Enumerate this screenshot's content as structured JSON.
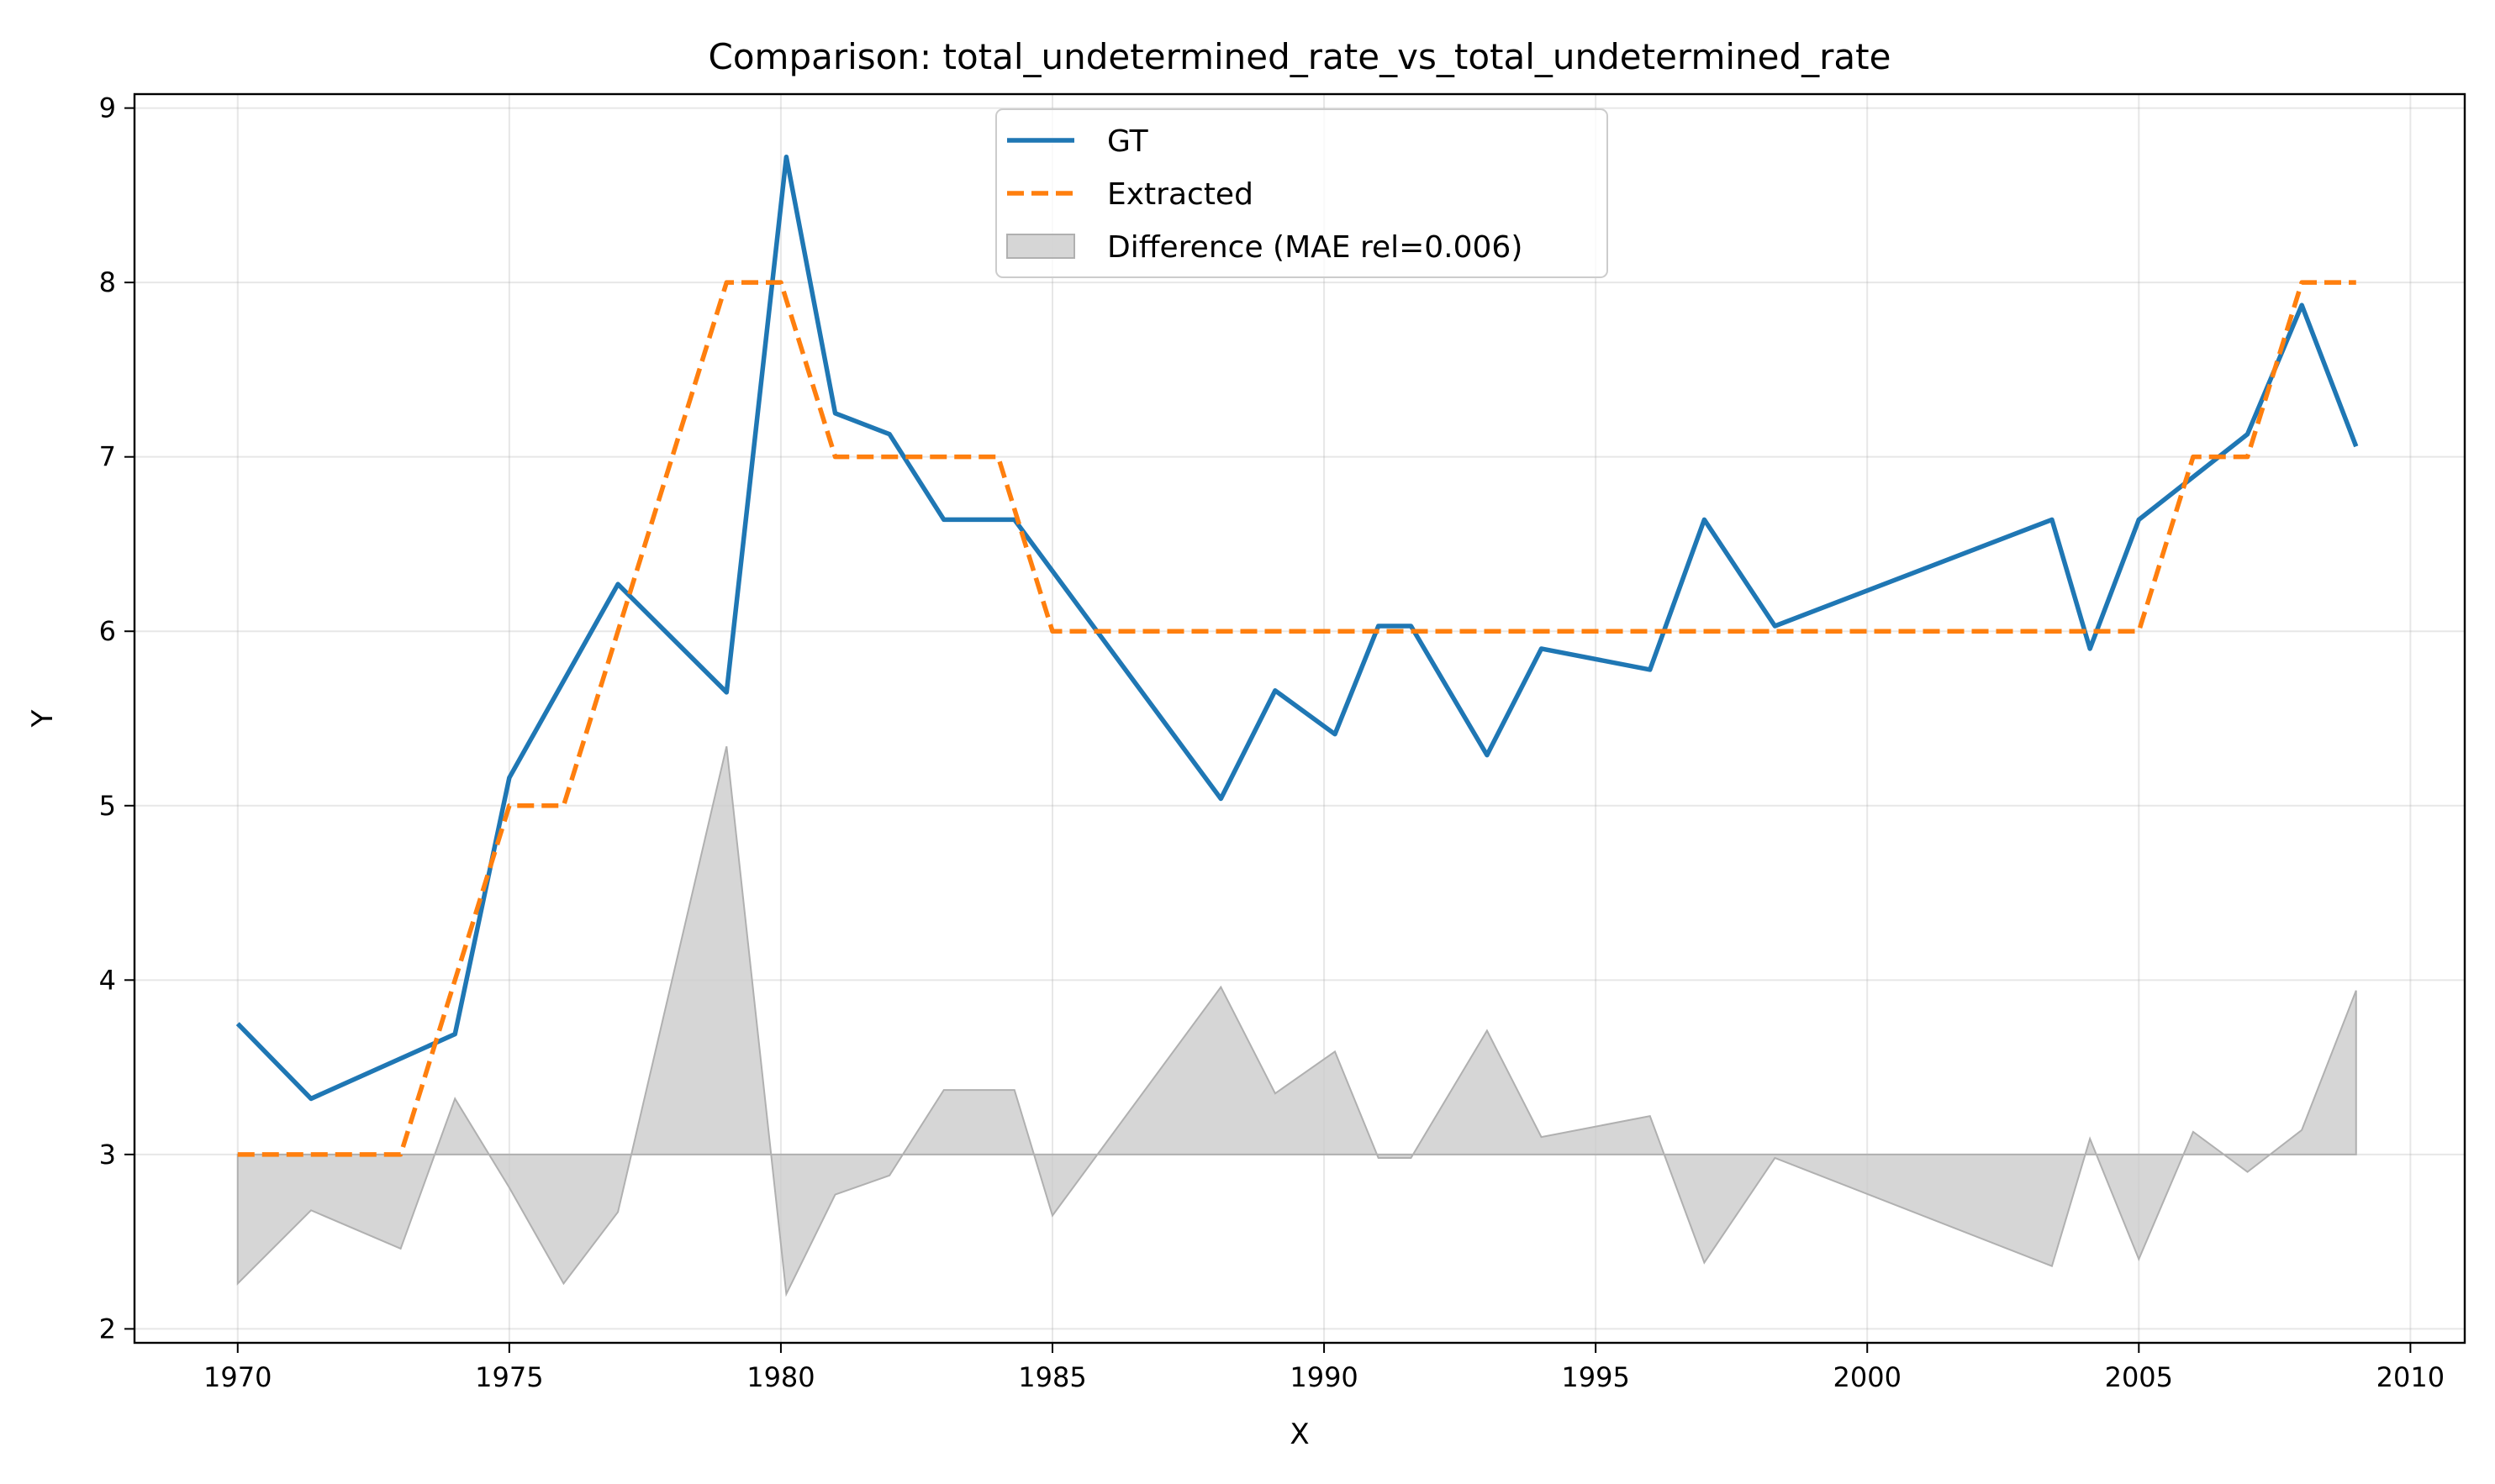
{
  "chart_data": {
    "type": "line",
    "title": "Comparison: total_undetermined_rate_vs_total_undetermined_rate",
    "xlabel": "X",
    "ylabel": "Y",
    "xlim": [
      1968.1,
      2011.0
    ],
    "ylim": [
      1.92,
      9.08
    ],
    "xticks": [
      1970,
      1975,
      1980,
      1985,
      1990,
      1995,
      2000,
      2005,
      2010
    ],
    "yticks": [
      2,
      3,
      4,
      5,
      6,
      7,
      8,
      9
    ],
    "grid": true,
    "legend_position": "top-center",
    "difference_baseline": 3,
    "series": [
      {
        "name": "GT",
        "style": "solid",
        "color": "#1f77b4",
        "x": [
          1970.0,
          1971.35,
          1974.0,
          1975.0,
          1977.0,
          1979.0,
          1980.1,
          1981.0,
          1982.0,
          1983.0,
          1984.3,
          1988.1,
          1989.1,
          1990.2,
          1991.0,
          1991.6,
          1993.0,
          1994.0,
          1996.0,
          1997.0,
          1998.3,
          2003.4,
          2004.1,
          2005.0,
          2007.0,
          2008.0,
          2009.0
        ],
        "y": [
          3.75,
          3.32,
          3.69,
          5.16,
          6.27,
          5.65,
          8.72,
          7.25,
          7.13,
          6.64,
          6.64,
          5.04,
          5.66,
          5.41,
          6.03,
          6.03,
          5.29,
          5.9,
          5.78,
          6.64,
          6.03,
          6.64,
          5.9,
          6.64,
          7.13,
          7.87,
          7.06
        ]
      },
      {
        "name": "Extracted",
        "style": "dashed",
        "color": "#ff7f0e",
        "x": [
          1970.0,
          1973.0,
          1975.0,
          1976.0,
          1979.0,
          1980.0,
          1981.0,
          1984.0,
          1985.0,
          2005.0,
          2006.0,
          2007.0,
          2008.0,
          2009.0
        ],
        "y": [
          3,
          3,
          5,
          5,
          8,
          8,
          7,
          7,
          6,
          6,
          7,
          7,
          8,
          8
        ]
      },
      {
        "name": "Difference (MAE rel=0.006)",
        "style": "fill",
        "color": "#cccccc",
        "x": [
          1970.0,
          1971.35,
          1973.0,
          1974.0,
          1975.0,
          1976.0,
          1977.0,
          1979.0,
          1980.1,
          1981.0,
          1982.0,
          1983.0,
          1984.3,
          1985.0,
          1988.1,
          1989.1,
          1990.2,
          1991.0,
          1991.6,
          1993.0,
          1994.0,
          1996.0,
          1997.0,
          1998.3,
          2003.4,
          2004.1,
          2005.0,
          2006.0,
          2007.0,
          2008.0,
          2009.0
        ],
        "y": [
          2.26,
          2.68,
          2.46,
          3.32,
          2.81,
          2.26,
          2.67,
          5.34,
          2.2,
          2.77,
          2.88,
          3.37,
          3.37,
          2.65,
          3.96,
          3.35,
          3.59,
          2.98,
          2.98,
          3.71,
          3.1,
          3.22,
          2.38,
          2.98,
          2.36,
          3.09,
          2.4,
          3.13,
          2.9,
          3.14,
          3.94
        ]
      }
    ]
  }
}
